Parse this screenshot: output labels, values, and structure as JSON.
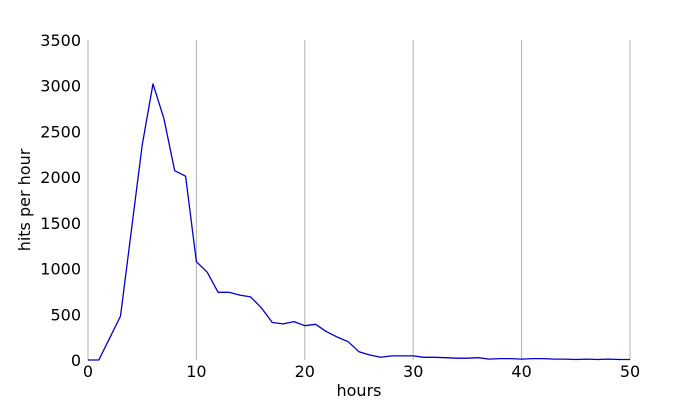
{
  "chart_data": {
    "type": "line",
    "title": "",
    "xlabel": "hours",
    "ylabel": "hits per hour",
    "xlim": [
      0,
      50
    ],
    "ylim": [
      0,
      3500
    ],
    "xticks": [
      0,
      10,
      20,
      30,
      40,
      50
    ],
    "yticks": [
      0,
      500,
      1000,
      1500,
      2000,
      2500,
      3000,
      3500
    ],
    "grid": "vertical",
    "line_color": "#0000cc",
    "grid_color": "#b0b0b0",
    "axis_color": "#b0b0b0",
    "series": [
      {
        "x": [
          0,
          1,
          2,
          3,
          4,
          5,
          6,
          7,
          8,
          9,
          10,
          11,
          12,
          13,
          14,
          15,
          16,
          17,
          18,
          19,
          20,
          21,
          22,
          23,
          24,
          25,
          26,
          27,
          28,
          29,
          30,
          31,
          32,
          33,
          34,
          35,
          36,
          37,
          38,
          39,
          40,
          41,
          42,
          43,
          44,
          45,
          46,
          47,
          48,
          49,
          50
        ],
        "y": [
          0,
          0,
          240,
          480,
          1420,
          2350,
          3020,
          2640,
          2070,
          2010,
          1075,
          960,
          740,
          740,
          710,
          690,
          570,
          410,
          395,
          420,
          375,
          390,
          310,
          250,
          200,
          90,
          55,
          30,
          45,
          45,
          45,
          30,
          30,
          25,
          20,
          20,
          25,
          10,
          15,
          15,
          10,
          15,
          15,
          10,
          10,
          5,
          10,
          5,
          10,
          5,
          5
        ]
      }
    ]
  }
}
